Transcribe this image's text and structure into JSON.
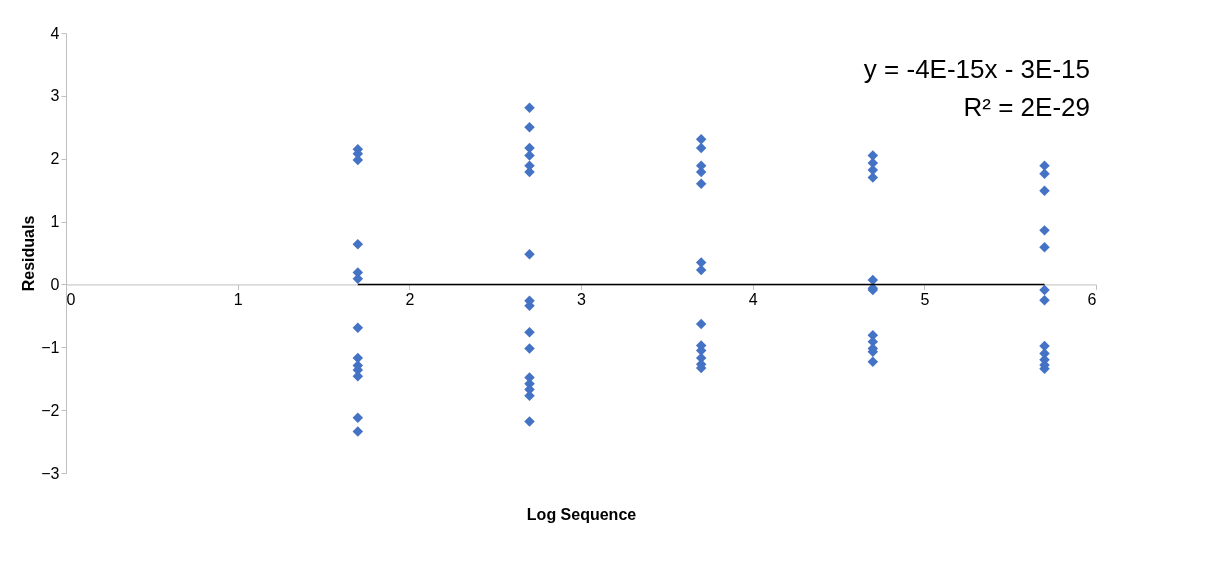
{
  "chart_data": {
    "type": "scatter",
    "xlabel": "Log Sequence",
    "ylabel": "Residuals",
    "annotations": [
      "y = -4E-15x - 3E-15",
      "R² = 2E-29"
    ],
    "xlim": [
      0,
      6
    ],
    "xticks": [
      0,
      1,
      2,
      3,
      4,
      5,
      6
    ],
    "ylim": [
      -3,
      4
    ],
    "yticks": [
      -3,
      -2,
      -1,
      0,
      1,
      2,
      3,
      4
    ],
    "grid": false,
    "marker": "diamond",
    "series": [
      {
        "color": "#4472c4",
        "x": [
          1.7,
          1.7,
          1.7,
          1.7,
          1.7,
          1.7,
          1.7,
          1.7,
          1.7,
          1.7,
          1.7,
          1.7,
          1.7,
          2.7,
          2.7,
          2.7,
          2.7,
          2.7,
          2.7,
          2.7,
          2.7,
          2.7,
          2.7,
          2.7,
          2.7,
          2.7,
          2.7,
          2.7,
          2.7,
          3.7,
          3.7,
          3.7,
          3.7,
          3.7,
          3.7,
          3.7,
          3.7,
          3.7,
          3.7,
          3.7,
          3.7,
          3.7,
          4.7,
          4.7,
          4.7,
          4.7,
          4.7,
          4.7,
          4.7,
          4.7,
          4.7,
          4.7,
          4.7,
          4.7,
          5.7,
          5.7,
          5.7,
          5.7,
          5.7,
          5.7,
          5.7,
          5.7,
          5.7,
          5.7,
          5.7,
          5.7
        ],
        "values": [
          2.15,
          2.08,
          1.98,
          0.64,
          0.19,
          0.09,
          -0.69,
          -1.17,
          -1.29,
          -1.36,
          -1.46,
          -2.12,
          -2.34,
          2.81,
          2.5,
          2.17,
          2.05,
          1.89,
          1.79,
          0.48,
          -0.26,
          -0.34,
          -0.76,
          -1.02,
          -1.48,
          -1.58,
          -1.67,
          -1.77,
          -2.18,
          2.31,
          2.17,
          1.89,
          1.79,
          1.6,
          0.35,
          0.23,
          -0.63,
          -0.97,
          -1.05,
          -1.17,
          -1.27,
          -1.33,
          2.05,
          1.93,
          1.82,
          1.7,
          0.07,
          -0.06,
          -0.09,
          -0.81,
          -0.91,
          -1.02,
          -1.07,
          -1.23,
          1.89,
          1.76,
          1.49,
          0.86,
          0.59,
          -0.09,
          -0.25,
          -0.98,
          -1.1,
          -1.2,
          -1.28,
          -1.34
        ]
      },
      {
        "type": "line",
        "marker": "none",
        "color": "#000000",
        "x": [
          1.7,
          5.7
        ],
        "values": [
          0,
          0
        ]
      }
    ]
  }
}
